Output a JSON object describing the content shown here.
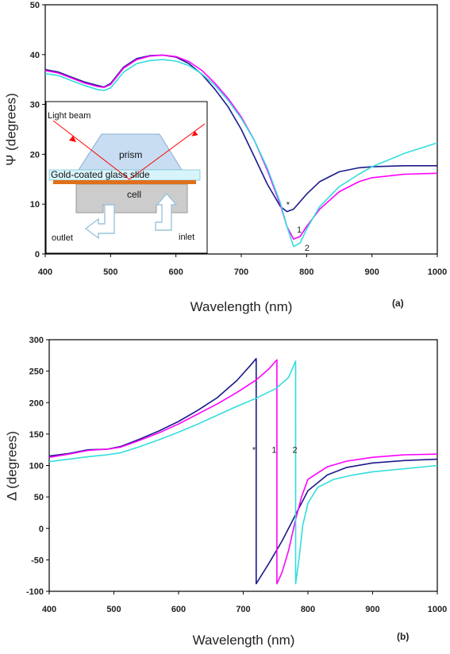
{
  "colors": {
    "series_star": "#1a1a8c",
    "series_1": "#ff00ff",
    "series_2": "#33dddd",
    "prism": "#c8ddf2",
    "gold_layer": "#e0701a",
    "glass": "#d8f4fb",
    "cell": "#c8c8c8",
    "beam": "#ff0000"
  },
  "chart_data": [
    {
      "type": "line",
      "panel": "(a)",
      "xlabel": "Wavelength (nm)",
      "ylabel": "Ψ (degrees)",
      "xlim": [
        400,
        1000
      ],
      "ylim": [
        0,
        50
      ],
      "xticks": [
        400,
        500,
        600,
        700,
        800,
        900,
        1000
      ],
      "yticks": [
        0,
        10,
        20,
        30,
        40,
        50
      ],
      "grid": false,
      "series": [
        {
          "name": "*",
          "color_key": "series_star",
          "x": [
            400,
            420,
            440,
            460,
            480,
            490,
            500,
            520,
            540,
            560,
            580,
            600,
            620,
            640,
            660,
            680,
            700,
            720,
            740,
            760,
            770,
            780,
            790,
            800,
            820,
            850,
            880,
            900,
            950,
            1000
          ],
          "y": [
            37.0,
            36.5,
            35.5,
            34.5,
            33.8,
            33.5,
            34.2,
            37.5,
            39.2,
            39.8,
            39.9,
            39.5,
            38.2,
            36.0,
            33.0,
            29.5,
            25.0,
            19.5,
            14.0,
            9.5,
            8.5,
            9.0,
            10.5,
            12.0,
            14.5,
            16.5,
            17.3,
            17.5,
            17.7,
            17.7
          ]
        },
        {
          "name": "1",
          "color_key": "series_1",
          "x": [
            400,
            420,
            440,
            460,
            480,
            490,
            500,
            520,
            540,
            560,
            580,
            600,
            620,
            640,
            660,
            680,
            700,
            720,
            740,
            760,
            770,
            780,
            790,
            800,
            820,
            850,
            880,
            900,
            950,
            1000
          ],
          "y": [
            36.8,
            36.3,
            35.3,
            34.3,
            33.6,
            33.4,
            34.0,
            37.3,
            39.0,
            39.7,
            39.9,
            39.6,
            38.6,
            36.8,
            34.2,
            31.2,
            27.5,
            22.8,
            16.8,
            9.8,
            5.5,
            3.0,
            3.5,
            5.5,
            9.0,
            12.5,
            14.5,
            15.3,
            16.0,
            16.2
          ]
        },
        {
          "name": "2",
          "color_key": "series_2",
          "x": [
            400,
            420,
            440,
            460,
            480,
            490,
            500,
            520,
            540,
            560,
            580,
            600,
            620,
            640,
            660,
            680,
            700,
            720,
            740,
            760,
            770,
            780,
            790,
            800,
            820,
            850,
            880,
            900,
            950,
            1000
          ],
          "y": [
            36.2,
            35.8,
            34.8,
            33.8,
            33.0,
            32.8,
            33.3,
            36.5,
            38.2,
            38.8,
            39.0,
            38.7,
            37.8,
            36.1,
            33.8,
            30.8,
            27.2,
            22.8,
            17.2,
            10.2,
            5.5,
            1.5,
            2.2,
            5.0,
            9.5,
            13.5,
            16.0,
            17.5,
            20.2,
            22.3
          ]
        }
      ],
      "annotations": [
        "*",
        "1",
        "2"
      ],
      "inset": {
        "labels": {
          "beam": "Light beam",
          "prism": "prism",
          "slide": "Gold-coated glass slide",
          "cell": "cell",
          "outlet": "outlet",
          "inlet": "inlet"
        }
      }
    },
    {
      "type": "line",
      "panel": "(b)",
      "xlabel": "Wavelength (nm)",
      "ylabel": "Δ (degrees)",
      "xlim": [
        400,
        1000
      ],
      "ylim": [
        -100,
        300
      ],
      "xticks": [
        400,
        500,
        600,
        700,
        800,
        900,
        1000
      ],
      "yticks": [
        -100,
        -50,
        0,
        50,
        100,
        150,
        200,
        250,
        300
      ],
      "grid": false,
      "series": [
        {
          "name": "*",
          "color_key": "series_star",
          "x": [
            400,
            430,
            460,
            490,
            510,
            540,
            570,
            600,
            630,
            660,
            690,
            710,
            720,
            720,
            740,
            760,
            780,
            800,
            830,
            860,
            900,
            950,
            1000
          ],
          "y": [
            115,
            119,
            125,
            126,
            130,
            142,
            155,
            170,
            188,
            208,
            235,
            258,
            270,
            -88,
            -55,
            -20,
            20,
            60,
            85,
            97,
            104,
            108,
            110
          ]
        },
        {
          "name": "1",
          "color_key": "series_1",
          "x": [
            400,
            430,
            460,
            490,
            510,
            540,
            570,
            600,
            630,
            660,
            690,
            720,
            740,
            752,
            752,
            760,
            770,
            780,
            790,
            800,
            830,
            860,
            900,
            950,
            1000
          ],
          "y": [
            113,
            118,
            124,
            126,
            129,
            140,
            152,
            166,
            182,
            198,
            216,
            236,
            254,
            268,
            -88,
            -70,
            -35,
            10,
            50,
            78,
            98,
            107,
            113,
            117,
            118
          ]
        },
        {
          "name": "2",
          "color_key": "series_2",
          "x": [
            400,
            430,
            460,
            490,
            510,
            540,
            570,
            600,
            630,
            660,
            690,
            720,
            750,
            770,
            781,
            781,
            786,
            792,
            800,
            815,
            840,
            870,
            900,
            950,
            1000
          ],
          "y": [
            106,
            110,
            114,
            117,
            120,
            130,
            141,
            153,
            166,
            180,
            194,
            207,
            222,
            240,
            266,
            -88,
            -50,
            5,
            40,
            65,
            78,
            85,
            90,
            95,
            100
          ]
        }
      ],
      "annotations": [
        "*",
        "1",
        "2"
      ]
    }
  ]
}
